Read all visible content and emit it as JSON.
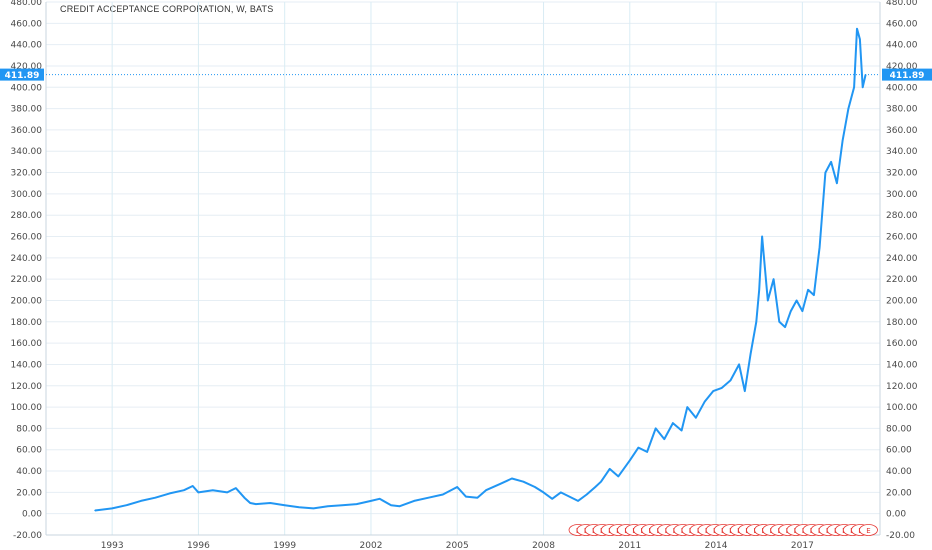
{
  "title": "CREDIT ACCEPTANCE CORPORATION, W, BATS",
  "current_price_label": "411.89",
  "colors": {
    "series": "#2196f3",
    "earnings": "#e53935",
    "grid": "#e6eef4"
  },
  "chart_data": {
    "type": "line",
    "title": "CREDIT ACCEPTANCE CORPORATION, W, BATS",
    "xlabel": "",
    "ylabel": "",
    "ylim": [
      -20,
      480
    ],
    "xlim": [
      1990.7,
      2019.7
    ],
    "y_ticks": [
      -20,
      0,
      20,
      40,
      60,
      80,
      100,
      120,
      140,
      160,
      180,
      200,
      220,
      240,
      260,
      280,
      300,
      320,
      340,
      360,
      380,
      400,
      420,
      440,
      460,
      480
    ],
    "y_tick_labels": [
      "-20.00",
      "0.00",
      "20.00",
      "40.00",
      "60.00",
      "80.00",
      "100.00",
      "120.00",
      "140.00",
      "160.00",
      "180.00",
      "200.00",
      "220.00",
      "240.00",
      "260.00",
      "280.00",
      "300.00",
      "320.00",
      "340.00",
      "360.00",
      "380.00",
      "400.00",
      "420.00",
      "440.00",
      "460.00",
      "480.00"
    ],
    "x_ticks": [
      1993,
      1996,
      1999,
      2002,
      2005,
      2008,
      2011,
      2014,
      2017
    ],
    "x_tick_labels": [
      "1993",
      "1996",
      "1999",
      "2002",
      "2005",
      "2008",
      "2011",
      "2014",
      "2017"
    ],
    "last_value": 411.89,
    "series": [
      {
        "x": [
          1992.4,
          1993.0,
          1993.5,
          1994.0,
          1994.5,
          1995.0,
          1995.5,
          1995.8,
          1996.0,
          1996.5,
          1997.0,
          1997.3,
          1997.6,
          1997.8,
          1998.0,
          1998.5,
          1999.0,
          1999.5,
          2000.0,
          2000.5,
          2001.0,
          2001.5,
          2002.0,
          2002.3,
          2002.7,
          2003.0,
          2003.5,
          2004.0,
          2004.5,
          2005.0,
          2005.3,
          2005.7,
          2006.0,
          2006.5,
          2006.9,
          2007.3,
          2007.7,
          2008.0,
          2008.3,
          2008.6,
          2008.9,
          2009.2,
          2009.5,
          2009.8,
          2010.0,
          2010.3,
          2010.6,
          2011.0,
          2011.3,
          2011.6,
          2011.9,
          2012.2,
          2012.5,
          2012.8,
          2013.0,
          2013.3,
          2013.6,
          2013.9,
          2014.2,
          2014.5,
          2014.8,
          2015.0,
          2015.2,
          2015.4,
          2015.5,
          2015.6,
          2015.8,
          2016.0,
          2016.2,
          2016.4,
          2016.6,
          2016.8,
          2017.0,
          2017.2,
          2017.4,
          2017.6,
          2017.8,
          2018.0,
          2018.2,
          2018.4,
          2018.6,
          2018.8,
          2018.9,
          2019.0,
          2019.1,
          2019.2
        ],
        "y": [
          3,
          5,
          8,
          12,
          15,
          19,
          22,
          26,
          20,
          22,
          20,
          24,
          15,
          10,
          9,
          10,
          8,
          6,
          5,
          7,
          8,
          9,
          12,
          14,
          8,
          7,
          12,
          15,
          18,
          25,
          16,
          15,
          22,
          28,
          33,
          30,
          25,
          20,
          14,
          20,
          16,
          12,
          18,
          25,
          30,
          42,
          35,
          50,
          62,
          58,
          80,
          70,
          85,
          78,
          100,
          90,
          105,
          115,
          118,
          125,
          140,
          115,
          150,
          180,
          210,
          260,
          200,
          220,
          180,
          175,
          190,
          200,
          190,
          210,
          205,
          250,
          320,
          330,
          310,
          350,
          380,
          400,
          455,
          445,
          400,
          411.89
        ]
      }
    ],
    "earnings_markers": [
      "E",
      "E",
      "E",
      "E",
      "E",
      "E",
      "E",
      "E",
      "E",
      "E",
      "E",
      "E",
      "E",
      "E",
      "E",
      "E",
      "E",
      "E",
      "E",
      "E",
      "E",
      "E",
      "E",
      "E",
      "E",
      "E",
      "E",
      "E",
      "E",
      "E",
      "E",
      "E",
      "E",
      "E",
      "E",
      "E",
      "E"
    ]
  }
}
